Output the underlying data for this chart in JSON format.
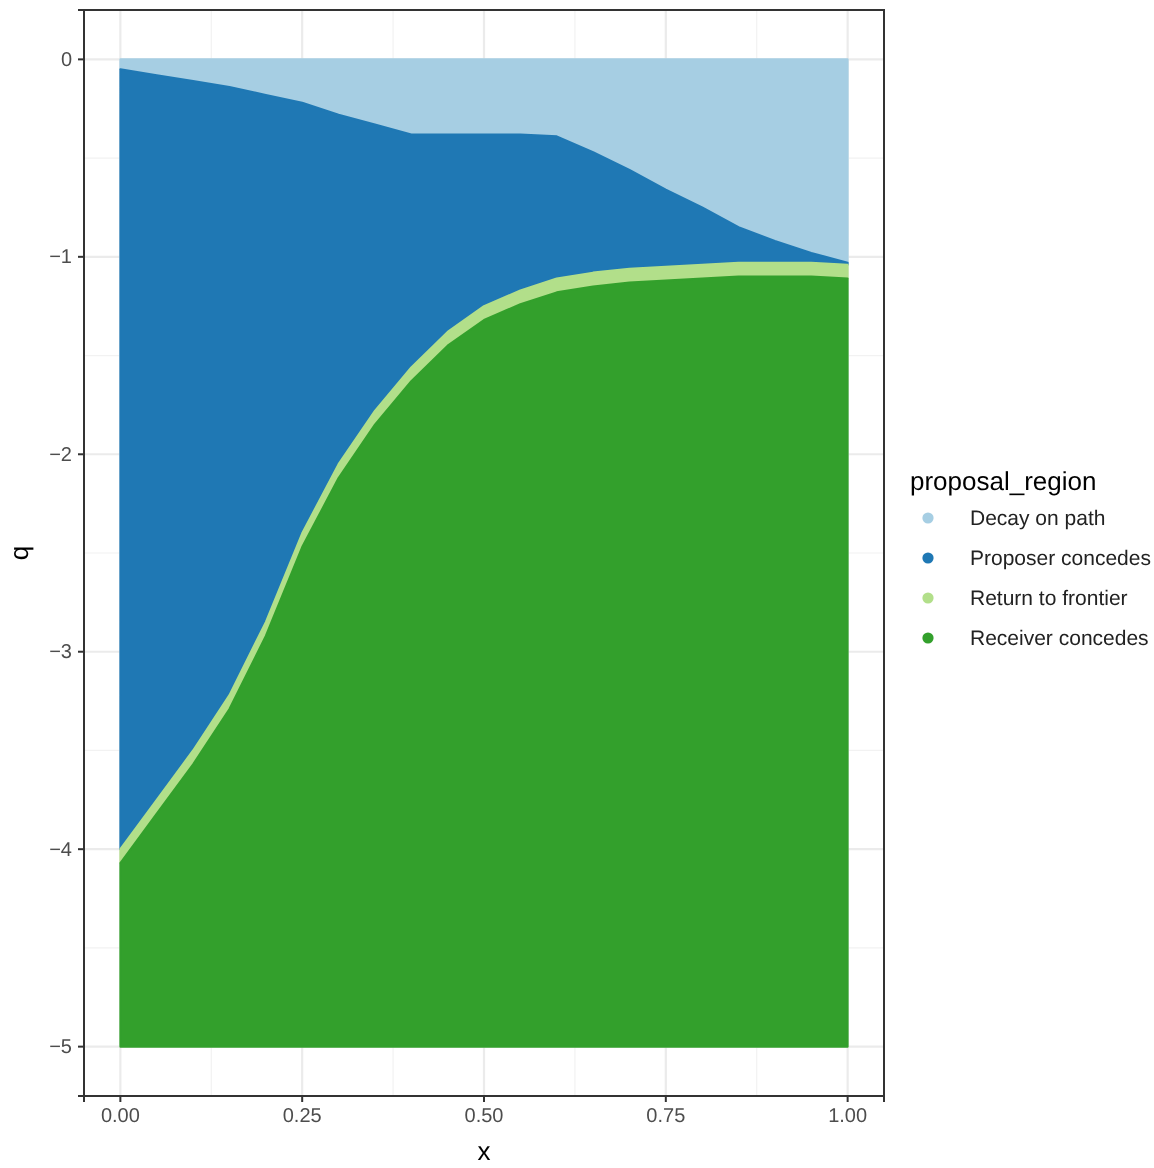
{
  "chart_data": {
    "type": "area",
    "stacked": true,
    "xlabel": "x",
    "ylabel": "q",
    "legend_title": "proposal_region",
    "legend": "right",
    "grid": true,
    "x": [
      0,
      0.05,
      0.1,
      0.15,
      0.2,
      0.25,
      0.3,
      0.35,
      0.4,
      0.45,
      0.5,
      0.55,
      0.6,
      0.65,
      0.7,
      0.75,
      0.8,
      0.85,
      0.9,
      0.95,
      1
    ],
    "xlim": [
      -0.05,
      1.05
    ],
    "xticks": [
      {
        "value": 0,
        "label": "0.00"
      },
      {
        "value": 0.25,
        "label": "0.25"
      },
      {
        "value": 0.5,
        "label": "0.50"
      },
      {
        "value": 0.75,
        "label": "0.75"
      },
      {
        "value": 1,
        "label": "1.00"
      }
    ],
    "ylim": [
      -5.25,
      0.25
    ],
    "yticks": [
      -5,
      -4,
      -3,
      -2,
      -1,
      0
    ],
    "series": [
      {
        "name": "Decay on path",
        "color": "#a6cee3",
        "values": [
          -0.05,
          -0.08,
          -0.11,
          -0.14,
          -0.18,
          -0.22,
          -0.28,
          -0.33,
          -0.38,
          -0.38,
          -0.38,
          -0.38,
          -0.39,
          -0.47,
          -0.56,
          -0.66,
          -0.75,
          -0.85,
          -0.92,
          -0.98,
          -1.03
        ]
      },
      {
        "name": "Proposer concedes",
        "color": "#1f78b4",
        "values": [
          -3.95,
          -3.67,
          -3.39,
          -3.08,
          -2.67,
          -2.18,
          -1.77,
          -1.45,
          -1.18,
          -1.0,
          -0.87,
          -0.79,
          -0.72,
          -0.61,
          -0.5,
          -0.39,
          -0.29,
          -0.18,
          -0.11,
          -0.05,
          -0.01
        ]
      },
      {
        "name": "Return to frontier",
        "color": "#b2df8a",
        "values": [
          -0.07,
          -0.07,
          -0.07,
          -0.07,
          -0.07,
          -0.07,
          -0.07,
          -0.07,
          -0.07,
          -0.07,
          -0.07,
          -0.07,
          -0.07,
          -0.07,
          -0.07,
          -0.07,
          -0.07,
          -0.07,
          -0.07,
          -0.07,
          -0.07
        ]
      },
      {
        "name": "Receiver concedes",
        "color": "#33a02c",
        "values": [
          -0.93,
          -1.18,
          -1.43,
          -1.71,
          -2.08,
          -2.53,
          -2.88,
          -3.15,
          -3.37,
          -3.55,
          -3.68,
          -3.76,
          -3.82,
          -3.85,
          -3.87,
          -3.88,
          -3.89,
          -3.9,
          -3.9,
          -3.9,
          -3.89
        ]
      }
    ]
  }
}
